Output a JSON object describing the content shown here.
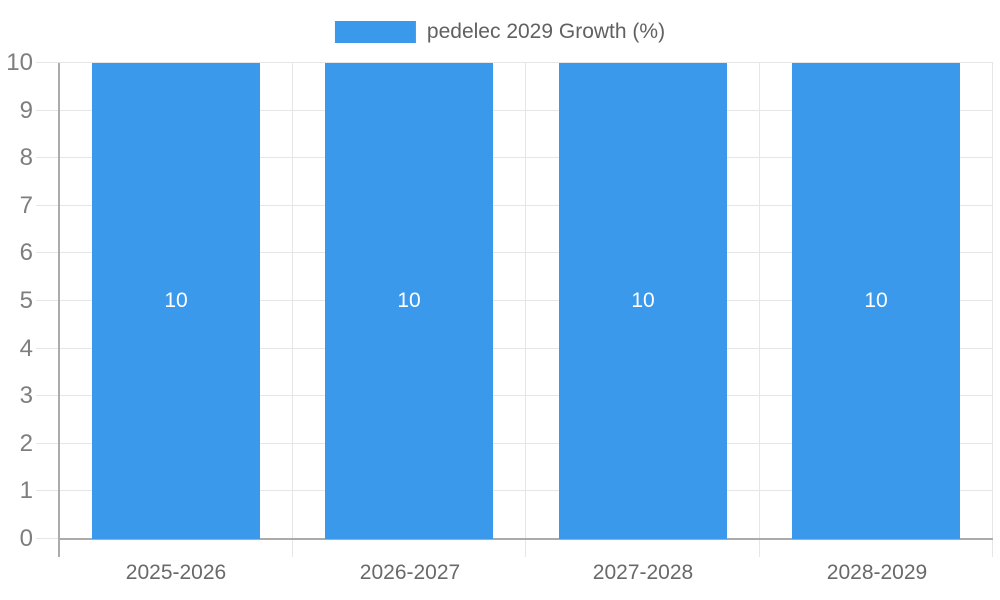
{
  "page": {
    "background": "#FFFFFF"
  },
  "chart_data": {
    "type": "bar",
    "title": "",
    "legend": {
      "position": "top",
      "label": "pedelec 2029 Growth (%)"
    },
    "categories": [
      "2025-2026",
      "2026-2027",
      "2027-2028",
      "2028-2029"
    ],
    "series": [
      {
        "name": "pedelec 2029 Growth (%)",
        "values": [
          10,
          10,
          10,
          10
        ]
      }
    ],
    "bar_value_labels": [
      "10",
      "10",
      "10",
      "10"
    ],
    "ylabel": "",
    "xlabel": "",
    "ylim": [
      0,
      10
    ],
    "yticks": [
      "0",
      "1",
      "2",
      "3",
      "4",
      "5",
      "6",
      "7",
      "8",
      "9",
      "10"
    ],
    "grid": true,
    "legend_position": "top",
    "colors": {
      "bar": "#3B99EC",
      "grid": "#E6E6E6",
      "axis": "#ABABAB",
      "y_tick_label": "#7E7E7E",
      "x_label": "#696969",
      "legend_text": "#616161",
      "bar_label": "#FFFFFF"
    }
  }
}
